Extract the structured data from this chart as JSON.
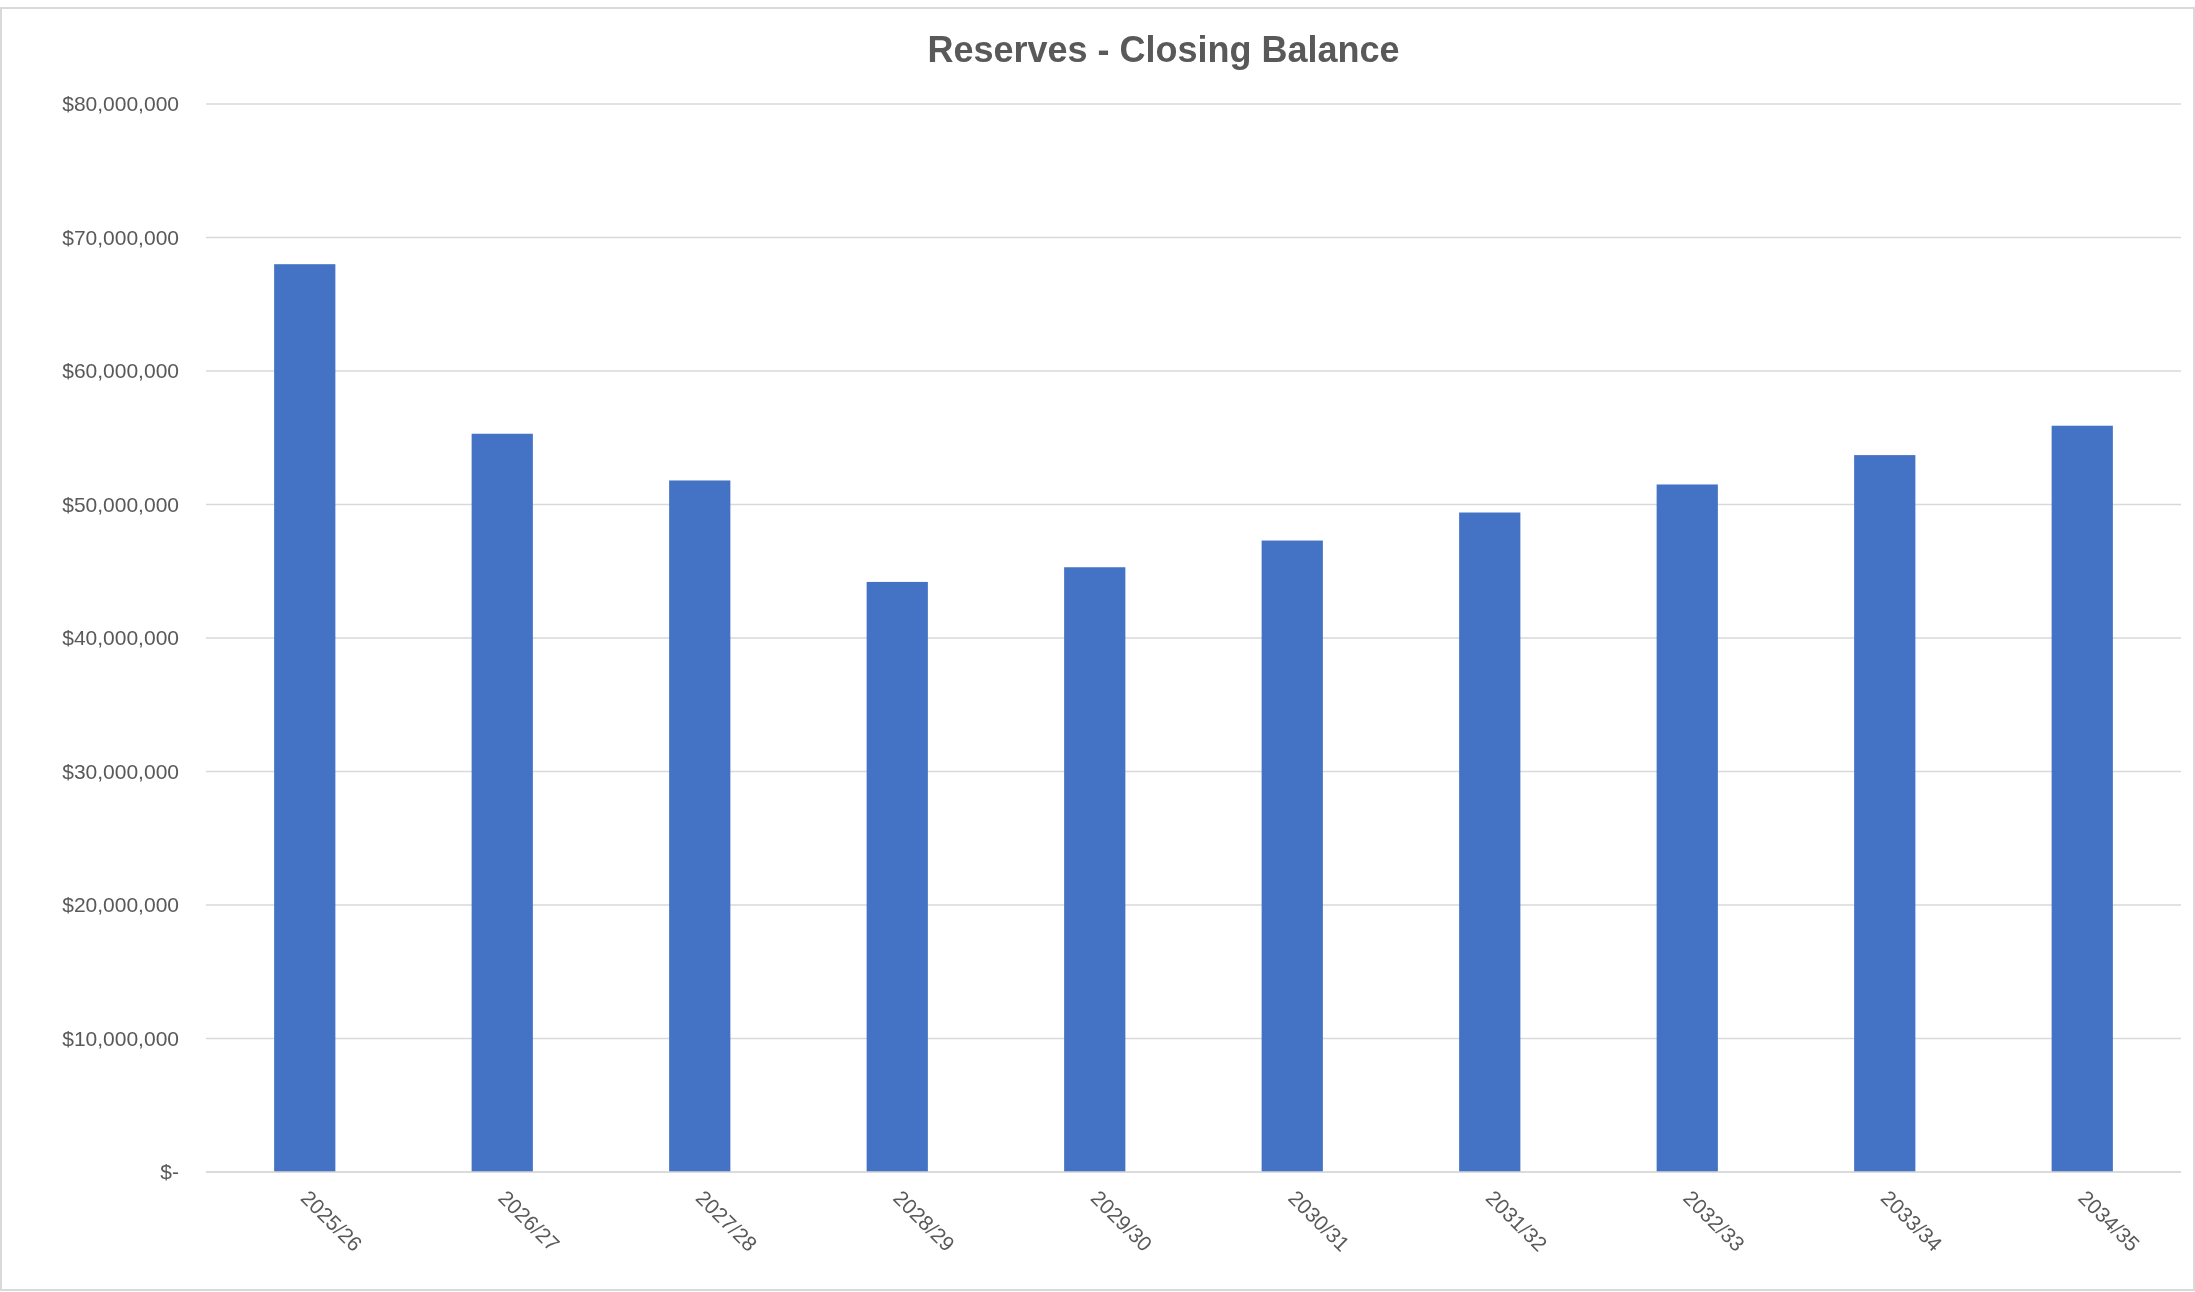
{
  "chart_data": {
    "type": "bar",
    "title": "Reserves - Closing Balance",
    "categories": [
      "2025/26",
      "2026/27",
      "2027/28",
      "2028/29",
      "2029/30",
      "2030/31",
      "2031/32",
      "2032/33",
      "2033/34",
      "2034/35"
    ],
    "values": [
      68000000,
      55300000,
      51800000,
      44200000,
      45300000,
      47300000,
      49400000,
      51500000,
      53700000,
      55900000
    ],
    "color": "#4472c4",
    "ylim": [
      0,
      80000000
    ],
    "yticks": [
      {
        "value": 0,
        "label": "$-"
      },
      {
        "value": 10000000,
        "label": "$10,000,000"
      },
      {
        "value": 20000000,
        "label": "$20,000,000"
      },
      {
        "value": 30000000,
        "label": "$30,000,000"
      },
      {
        "value": 40000000,
        "label": "$40,000,000"
      },
      {
        "value": 50000000,
        "label": "$50,000,000"
      },
      {
        "value": 60000000,
        "label": "$60,000,000"
      },
      {
        "value": 70000000,
        "label": "$70,000,000"
      },
      {
        "value": 80000000,
        "label": "$80,000,000"
      }
    ],
    "grid": "y"
  }
}
